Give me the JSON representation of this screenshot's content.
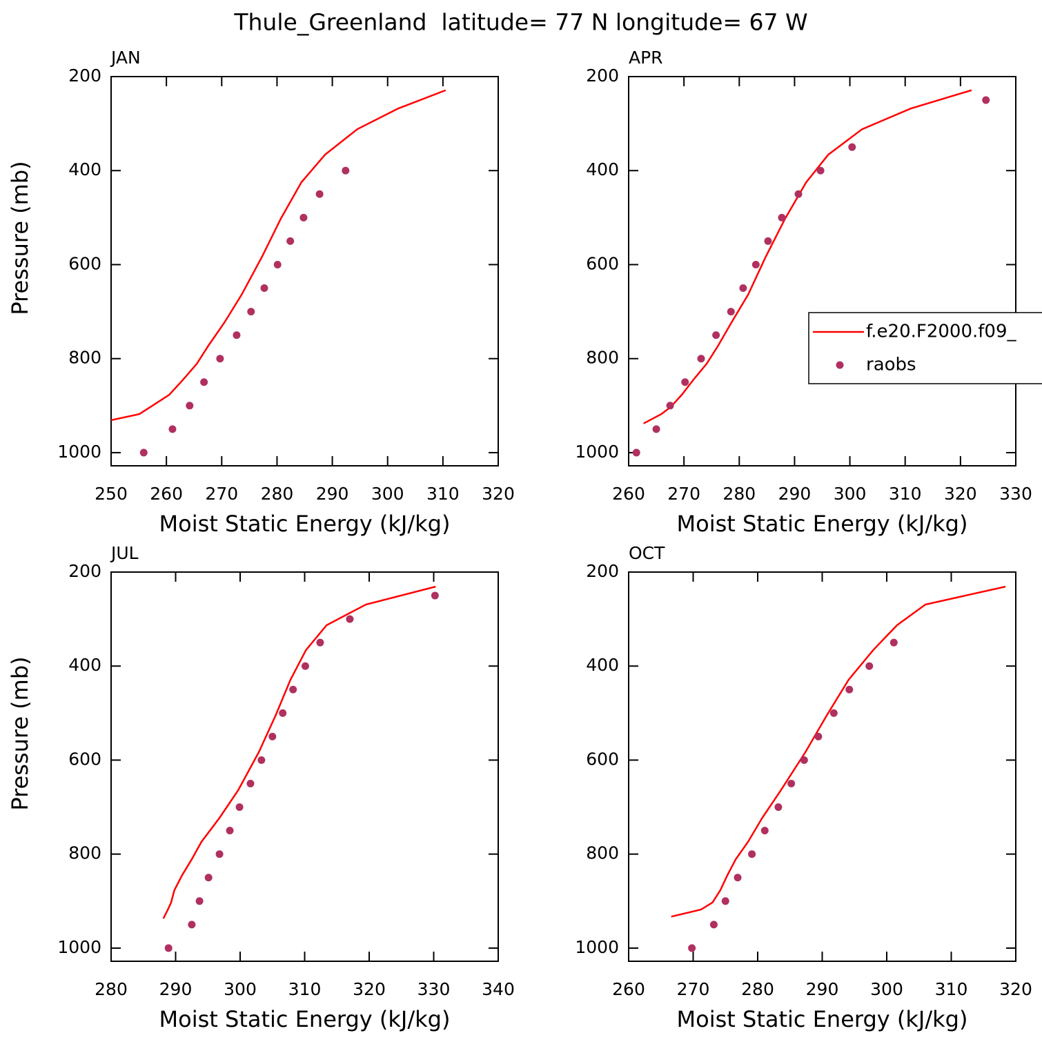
{
  "title": "Thule_Greenland  latitude= 77 N longitude= 67 W",
  "chart_data": [
    {
      "type": "line",
      "label": "JAN",
      "xlabel": "Moist Static Energy (kJ/kg)",
      "ylabel": "Pressure (mb)",
      "xlim": [
        250,
        320
      ],
      "xticks": [
        250,
        260,
        270,
        280,
        290,
        300,
        310,
        320
      ],
      "ylim": [
        1028,
        200
      ],
      "yticks": [
        200,
        400,
        600,
        800,
        1000
      ],
      "legend": false,
      "series": [
        {
          "style": "line",
          "color": "#ff0000",
          "x": [
            310.5,
            301.9,
            294.5,
            288.7,
            284.4,
            280.7,
            277.3,
            273.6,
            270.5,
            267.5,
            265.5,
            263.0,
            260.5,
            257.1,
            255.1,
            250.0
          ],
          "y": [
            229,
            268,
            312,
            366,
            425,
            502,
            583,
            664,
            723,
            774,
            811,
            845,
            877,
            903,
            918,
            931
          ]
        },
        {
          "style": "markers",
          "color": "#b03060",
          "x": [
            255.9,
            261.1,
            264.2,
            266.8,
            269.7,
            272.7,
            275.3,
            277.7,
            280.1,
            282.4,
            284.8,
            287.7,
            292.4
          ],
          "y": [
            1000,
            950,
            900,
            850,
            800,
            750,
            700,
            650,
            600,
            550,
            500,
            450,
            400
          ]
        }
      ]
    },
    {
      "type": "line",
      "label": "APR",
      "xlabel": "Moist Static Energy (kJ/kg)",
      "xlim": [
        260,
        330
      ],
      "xticks": [
        260,
        270,
        280,
        290,
        300,
        310,
        320,
        330
      ],
      "ylim": [
        1028,
        200
      ],
      "yticks": [
        200,
        400,
        600,
        800,
        1000
      ],
      "legend": true,
      "series": [
        {
          "name": "f.e20.F2000.f09_",
          "style": "line",
          "color": "#ff0000",
          "x": [
            322.0,
            311.0,
            302.2,
            296.1,
            292.1,
            288.3,
            284.8,
            281.6,
            278.6,
            276.1,
            274.1,
            271.7,
            269.6,
            267.6,
            265.9,
            262.7
          ],
          "y": [
            229,
            268,
            312,
            366,
            425,
            502,
            583,
            664,
            723,
            774,
            811,
            845,
            877,
            903,
            918,
            938
          ]
        },
        {
          "name": "raobs",
          "style": "markers",
          "color": "#b03060",
          "x": [
            261.4,
            265.0,
            267.5,
            270.2,
            273.1,
            275.8,
            278.5,
            280.7,
            283.0,
            285.2,
            287.7,
            290.7,
            294.7,
            300.4,
            324.6
          ],
          "y": [
            1000,
            950,
            900,
            850,
            800,
            750,
            700,
            650,
            600,
            550,
            500,
            450,
            400,
            350,
            250
          ]
        }
      ]
    },
    {
      "type": "line",
      "label": "JUL",
      "xlabel": "Moist Static Energy (kJ/kg)",
      "ylabel": "Pressure (mb)",
      "xlim": [
        280,
        340
      ],
      "xticks": [
        280,
        290,
        300,
        310,
        320,
        330,
        340
      ],
      "ylim": [
        1028,
        200
      ],
      "yticks": [
        200,
        400,
        600,
        800,
        1000
      ],
      "legend": false,
      "series": [
        {
          "style": "line",
          "color": "#ff0000",
          "x": [
            330.3,
            319.5,
            313.4,
            310.2,
            307.8,
            305.5,
            302.9,
            299.7,
            296.8,
            294.0,
            292.5,
            291.0,
            289.8,
            289.3,
            288.8,
            288.1
          ],
          "y": [
            231,
            269,
            313,
            366,
            429,
            505,
            583,
            664,
            723,
            774,
            811,
            845,
            877,
            903,
            918,
            937
          ]
        },
        {
          "style": "markers",
          "color": "#b03060",
          "x": [
            288.9,
            292.5,
            293.7,
            295.1,
            296.8,
            298.4,
            299.9,
            301.6,
            303.3,
            305.0,
            306.6,
            308.2,
            310.1,
            312.4,
            317.0,
            330.2
          ],
          "y": [
            1000,
            950,
            900,
            850,
            800,
            750,
            700,
            650,
            600,
            550,
            500,
            450,
            400,
            350,
            300,
            250
          ]
        }
      ]
    },
    {
      "type": "line",
      "label": "OCT",
      "xlabel": "Moist Static Energy (kJ/kg)",
      "xlim": [
        260,
        320
      ],
      "xticks": [
        260,
        270,
        280,
        290,
        300,
        310,
        320
      ],
      "ylim": [
        1028,
        200
      ],
      "yticks": [
        200,
        400,
        600,
        800,
        1000
      ],
      "legend": false,
      "series": [
        {
          "style": "line",
          "color": "#ff0000",
          "x": [
            318.4,
            306.0,
            301.6,
            297.9,
            294.1,
            290.7,
            287.4,
            283.6,
            280.7,
            278.5,
            276.6,
            275.3,
            274.2,
            273.0,
            271.2,
            266.6
          ],
          "y": [
            231,
            269,
            313,
            366,
            429,
            505,
            583,
            664,
            723,
            774,
            811,
            845,
            877,
            903,
            918,
            933
          ]
        },
        {
          "style": "markers",
          "color": "#b03060",
          "x": [
            269.8,
            273.2,
            275.0,
            276.9,
            279.1,
            281.1,
            283.2,
            285.2,
            287.2,
            289.4,
            291.8,
            294.2,
            297.3,
            301.1
          ],
          "y": [
            1000,
            950,
            900,
            850,
            800,
            750,
            700,
            650,
            600,
            550,
            500,
            450,
            400,
            350
          ]
        }
      ]
    }
  ]
}
